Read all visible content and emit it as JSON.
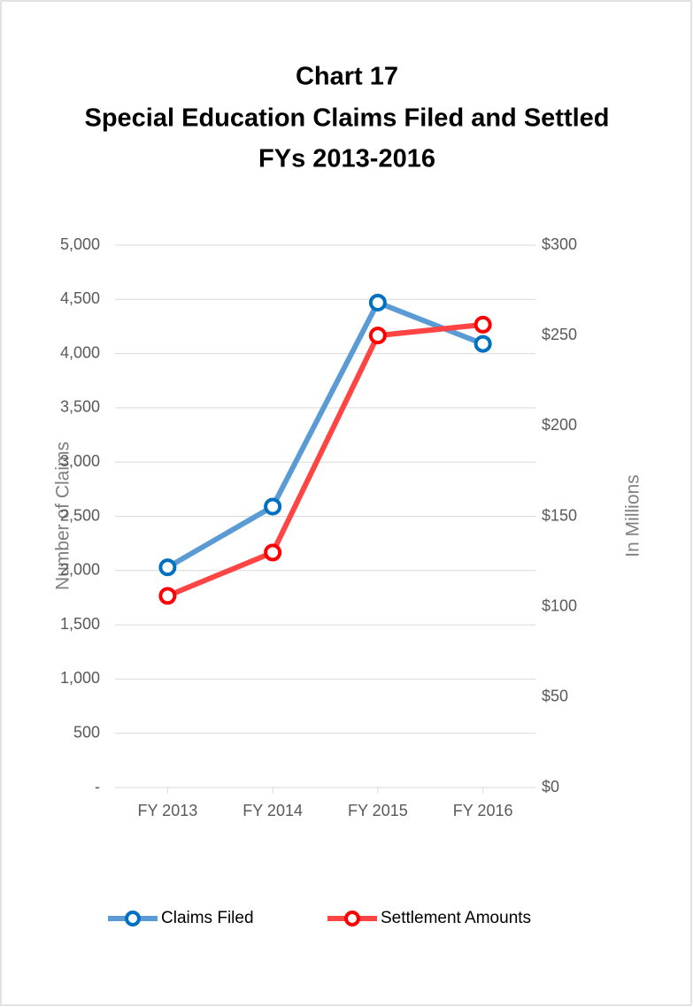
{
  "chart_data": {
    "type": "line",
    "title": [
      "Chart 17",
      "Special Education Claims Filed and Settled",
      "FYs 2013-2016"
    ],
    "ylabel": "Number of Claims",
    "y2label": "In Millions",
    "categories": [
      "FY 2013",
      "FY 2014",
      "FY 2015",
      "FY 2016"
    ],
    "series": [
      {
        "name": "Claims Filed",
        "color": "#5b9bd5",
        "marker_color": "#0070c0",
        "values": [
          2030,
          2590,
          4470,
          4090
        ]
      },
      {
        "name": "Settlement Amounts",
        "color": "#ff4444",
        "marker_color": "#ff0000",
        "axis": "y2",
        "values": [
          106,
          130,
          250,
          256
        ]
      }
    ],
    "ylim": [
      0,
      5000
    ],
    "yticks": [
      {
        "value": 0,
        "label": "-"
      },
      500,
      {
        "value": 1000,
        "label": "1,000"
      },
      {
        "value": 1500,
        "label": "1,500"
      },
      {
        "value": 2000,
        "label": "2,000"
      },
      {
        "value": 2500,
        "label": "2,500"
      },
      {
        "value": 3000,
        "label": "3,000"
      },
      {
        "value": 3500,
        "label": "3,500"
      },
      {
        "value": 4000,
        "label": "4,000"
      },
      {
        "value": 4500,
        "label": "4,500"
      },
      {
        "value": 5000,
        "label": "5,000"
      }
    ],
    "y2lim": [
      0,
      300
    ],
    "y2ticks": [
      {
        "value": 0,
        "label": "$0"
      },
      {
        "value": 50,
        "label": "$50"
      },
      {
        "value": 100,
        "label": "$100"
      },
      {
        "value": 150,
        "label": "$150"
      },
      {
        "value": 200,
        "label": "$200"
      },
      {
        "value": 250,
        "label": "$250"
      },
      {
        "value": 300,
        "label": "$300"
      }
    ],
    "grid": true,
    "legend": "bottom"
  }
}
